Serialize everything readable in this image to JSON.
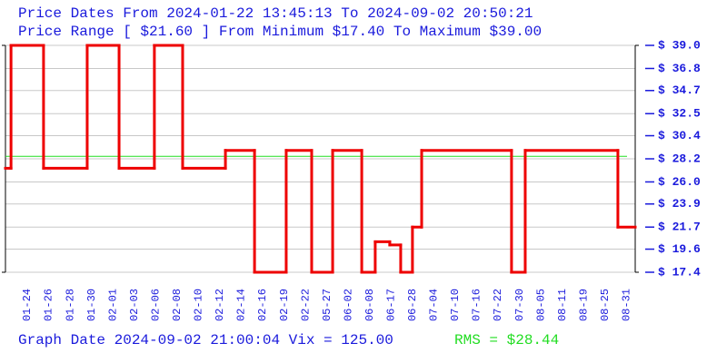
{
  "chart_data": {
    "type": "step",
    "title": "Price Dates From 2024-01-22 13:45:13 To 2024-09-02 20:50:21",
    "subtitle": "Price Range [ $21.60 ] From Minimum $17.40 To Maximum $39.00",
    "footer": "Graph Date 2024-09-02 21:00:04 Vix = 125.00",
    "categories": [
      "01-24",
      "01-26",
      "01-28",
      "01-30",
      "02-01",
      "02-03",
      "02-06",
      "02-08",
      "02-10",
      "02-12",
      "02-14",
      "02-16",
      "02-19",
      "02-22",
      "05-27",
      "06-02",
      "06-08",
      "06-17",
      "06-28",
      "07-04",
      "07-10",
      "07-16",
      "07-22",
      "07-30",
      "08-05",
      "08-11",
      "08-19",
      "08-25",
      "08-31"
    ],
    "xlim": [
      -1.02,
      28.41
    ],
    "ylim": [
      17.4,
      39.0
    ],
    "yticks": [
      {
        "value": 17.4,
        "label": "$ 17.4"
      },
      {
        "value": 19.6,
        "label": "$ 19.6"
      },
      {
        "value": 21.7,
        "label": "$ 21.7"
      },
      {
        "value": 23.9,
        "label": "$ 23.9"
      },
      {
        "value": 26.0,
        "label": "$ 26.0"
      },
      {
        "value": 28.2,
        "label": "$ 28.2"
      },
      {
        "value": 30.4,
        "label": "$ 30.4"
      },
      {
        "value": 32.5,
        "label": "$ 32.5"
      },
      {
        "value": 34.7,
        "label": "$ 34.7"
      },
      {
        "value": 36.8,
        "label": "$ 36.8"
      },
      {
        "value": 39.0,
        "label": "$ 39.0"
      }
    ],
    "grid": true,
    "series": [
      {
        "color": "#ee0000",
        "x": [
          -1.02,
          -0.76,
          0.76,
          2.8,
          4.29,
          5.94,
          7.26,
          9.26,
          10.62,
          12.1,
          13.29,
          14.27,
          15.63,
          16.26,
          16.94,
          17.45,
          18.0,
          18.43,
          22.63,
          23.27,
          27.6
        ],
        "values": [
          27.3,
          39.0,
          27.3,
          39.0,
          27.3,
          39.0,
          27.3,
          29.0,
          17.4,
          29.0,
          17.4,
          29.0,
          17.4,
          20.3,
          20.0,
          17.4,
          21.7,
          29.0,
          17.4,
          29.0,
          21.7
        ]
      }
    ],
    "reference_lines": [
      {
        "value": 28.44,
        "label": "RMS = $28.44",
        "color": "#22dd22"
      }
    ]
  }
}
